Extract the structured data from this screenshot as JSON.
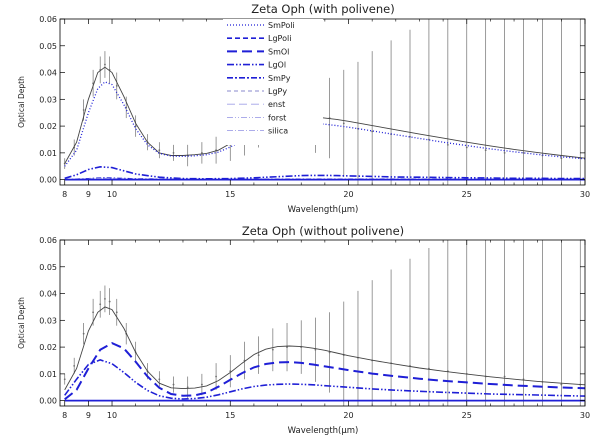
{
  "figure": {
    "colors": {
      "model_total": "#444444",
      "data_points": "#6f6f6f",
      "component": "#1f1fd6"
    }
  },
  "chart_data": [
    {
      "type": "line",
      "title": "Zeta Oph (with polivene)",
      "xlabel": "Wavelength(µm)",
      "ylabel": "Optical Depth",
      "xlim": [
        7.8,
        30
      ],
      "ylim": [
        -0.002,
        0.06
      ],
      "x_ticks": [
        8,
        9,
        10,
        15,
        20,
        25,
        30
      ],
      "y_ticks": [
        "0.00",
        "0.01",
        "0.02",
        "0.03",
        "0.04",
        "0.05",
        "0.06"
      ],
      "legend": {
        "position": "top-center",
        "entries": [
          "SmPoli",
          "LgPoli",
          "SmOl",
          "LgOl",
          "SmPy",
          "LgPy",
          "enst",
          "forst",
          "silica"
        ]
      },
      "series": [
        {
          "style": "solid-dark",
          "x": [
            8.0,
            8.5,
            9.0,
            9.4,
            9.7,
            10.0,
            10.5,
            11.0,
            11.5,
            12.0,
            12.5,
            13.0,
            13.5,
            14.0,
            14.5,
            15.0,
            15.5,
            16.0,
            16.5,
            17.0,
            17.5,
            18.0,
            18.5,
            19.0,
            19.5,
            20.0,
            21.0,
            22.0,
            23.0,
            24.0,
            25.0,
            26.0,
            27.0,
            28.0,
            29.0,
            30.0
          ],
          "y": [
            0.006,
            0.014,
            0.03,
            0.04,
            0.042,
            0.04,
            0.031,
            0.021,
            0.014,
            0.01,
            0.009,
            0.009,
            0.0093,
            0.0098,
            0.011,
            0.0135,
            0.016,
            0.019,
            0.021,
            0.0225,
            0.0232,
            0.0235,
            0.0235,
            0.023,
            0.0225,
            0.0218,
            0.0202,
            0.0186,
            0.017,
            0.0155,
            0.014,
            0.0126,
            0.0113,
            0.0101,
            0.009,
            0.008
          ]
        },
        {
          "name": "SmPoli",
          "style": "dotted",
          "x": [
            8.0,
            8.5,
            9.0,
            9.4,
            9.7,
            10.0,
            10.5,
            11.0,
            11.5,
            12.0,
            12.5,
            13.0,
            13.5,
            14.0,
            14.5,
            15.0,
            15.5,
            16.0,
            16.5,
            17.0,
            17.5,
            18.0,
            18.5,
            19.0,
            19.5,
            20.0,
            21.0,
            22.0,
            23.0,
            24.0,
            25.0,
            26.0,
            27.0,
            28.0,
            29.0,
            30.0
          ],
          "y": [
            0.005,
            0.011,
            0.025,
            0.034,
            0.0365,
            0.0355,
            0.028,
            0.019,
            0.013,
            0.0098,
            0.0088,
            0.0087,
            0.0089,
            0.0093,
            0.0103,
            0.0122,
            0.0145,
            0.017,
            0.0188,
            0.02,
            0.0207,
            0.021,
            0.021,
            0.0207,
            0.0202,
            0.0196,
            0.0182,
            0.0168,
            0.0154,
            0.014,
            0.0127,
            0.0115,
            0.0104,
            0.0094,
            0.0085,
            0.0078
          ]
        },
        {
          "name": "LgOl",
          "style": "dash-dot-dot",
          "x": [
            8.0,
            8.5,
            9.0,
            9.5,
            10.0,
            10.5,
            11.0,
            12.0,
            13.0,
            14.0,
            15.0,
            16.0,
            17.0,
            18.0,
            18.5,
            19.0,
            19.5,
            20.0,
            21.0,
            22.0,
            23.0,
            24.0,
            25.0,
            26.0,
            27.0,
            28.0,
            29.0,
            30.0
          ],
          "y": [
            0.0005,
            0.0018,
            0.0038,
            0.0048,
            0.0045,
            0.0033,
            0.0021,
            0.0009,
            0.0004,
            0.0003,
            0.0004,
            0.0007,
            0.0011,
            0.0015,
            0.0016,
            0.0016,
            0.0015,
            0.0014,
            0.0012,
            0.001,
            0.0009,
            0.0008,
            0.0007,
            0.0006,
            0.0005,
            0.0005,
            0.0004,
            0.0004
          ]
        },
        {
          "name": "SmPy",
          "style": "dash-dot",
          "x": [
            8.0,
            9.0,
            9.5,
            10.0,
            11.0,
            13.0,
            15.0,
            18.0,
            22.0,
            26.0,
            30.0
          ],
          "y": [
            0.0,
            0.0004,
            0.0007,
            0.0006,
            0.0003,
            0.0001,
            0.0001,
            0.0002,
            0.0002,
            0.0001,
            0.0001
          ]
        },
        {
          "name": "LgPy",
          "style": "light-dashed",
          "x": [
            8.0,
            9.0,
            9.5,
            10.0,
            11.0,
            13.0,
            15.0,
            18.0,
            22.0,
            26.0,
            30.0
          ],
          "y": [
            0.0,
            0.0003,
            0.0005,
            0.0004,
            0.0002,
            0.0001,
            0.0,
            0.0001,
            0.0001,
            0.0,
            0.0
          ]
        },
        {
          "name": "SmOl",
          "style": "baseline",
          "x": [
            8.0,
            30.0
          ],
          "y": [
            0.0,
            0.0
          ]
        }
      ],
      "data_with_errors": {
        "x": [
          8.0,
          8.4,
          8.8,
          9.2,
          9.5,
          9.7,
          9.9,
          10.2,
          10.6,
          11.0,
          11.5,
          12.0,
          12.6,
          13.2,
          13.8,
          14.4,
          15.0,
          15.6,
          16.2,
          16.8,
          17.4,
          18.0,
          18.6,
          19.2,
          19.8,
          20.4,
          21.0,
          21.8,
          22.6,
          23.4,
          24.2,
          25.0,
          25.8,
          26.6,
          27.4,
          28.2,
          29.0,
          29.8
        ],
        "y": [
          0.006,
          0.012,
          0.026,
          0.036,
          0.041,
          0.043,
          0.041,
          0.035,
          0.027,
          0.02,
          0.014,
          0.011,
          0.01,
          0.009,
          0.01,
          0.011,
          0.013,
          0.016,
          0.019,
          0.021,
          0.022,
          0.023,
          0.022,
          0.023,
          0.021,
          0.019,
          0.018,
          0.017,
          0.016,
          0.015,
          0.013,
          0.012,
          0.011,
          0.01,
          0.01,
          0.009,
          0.008,
          0.008
        ],
        "err": [
          0.002,
          0.003,
          0.004,
          0.005,
          0.005,
          0.005,
          0.005,
          0.005,
          0.004,
          0.004,
          0.003,
          0.003,
          0.003,
          0.004,
          0.004,
          0.005,
          0.006,
          0.007,
          0.007,
          0.008,
          0.009,
          0.01,
          0.012,
          0.015,
          0.02,
          0.025,
          0.03,
          0.035,
          0.04,
          0.045,
          0.05,
          0.055,
          0.06,
          0.06,
          0.065,
          0.065,
          0.07,
          0.07
        ]
      }
    },
    {
      "type": "line",
      "title": "Zeta Oph (without polivene)",
      "xlabel": "Wavelength(µm)",
      "ylabel": "Optical Depth",
      "xlim": [
        7.8,
        30
      ],
      "ylim": [
        -0.002,
        0.06
      ],
      "x_ticks": [
        8,
        9,
        10,
        15,
        20,
        25,
        30
      ],
      "y_ticks": [
        "0.00",
        "0.01",
        "0.02",
        "0.03",
        "0.04",
        "0.05",
        "0.06"
      ],
      "series": [
        {
          "style": "solid-dark",
          "x": [
            8.0,
            8.5,
            9.0,
            9.4,
            9.7,
            10.0,
            10.5,
            11.0,
            11.5,
            12.0,
            12.5,
            13.0,
            13.5,
            14.0,
            14.5,
            15.0,
            15.5,
            16.0,
            16.5,
            17.0,
            17.5,
            18.0,
            18.5,
            19.0,
            19.5,
            20.0,
            21.0,
            22.0,
            23.0,
            24.0,
            25.0,
            26.0,
            27.0,
            28.0,
            29.0,
            30.0
          ],
          "y": [
            0.004,
            0.012,
            0.026,
            0.033,
            0.035,
            0.034,
            0.027,
            0.018,
            0.011,
            0.0065,
            0.0048,
            0.0045,
            0.0047,
            0.0055,
            0.0075,
            0.0105,
            0.014,
            0.0172,
            0.0192,
            0.0202,
            0.0204,
            0.0202,
            0.0196,
            0.0188,
            0.0178,
            0.0168,
            0.0151,
            0.0136,
            0.0122,
            0.011,
            0.0099,
            0.0089,
            0.008,
            0.0072,
            0.0065,
            0.0059
          ]
        },
        {
          "name": "SmOl",
          "style": "long-dash",
          "x": [
            8.0,
            8.5,
            9.0,
            9.5,
            10.0,
            10.5,
            11.0,
            11.5,
            12.0,
            12.5,
            13.0,
            13.5,
            14.0,
            14.5,
            15.0,
            15.5,
            16.0,
            16.5,
            17.0,
            17.5,
            18.0,
            18.5,
            19.0,
            19.5,
            20.0,
            21.0,
            22.0,
            23.0,
            24.0,
            25.0,
            26.0,
            27.0,
            28.0,
            29.0,
            30.0
          ],
          "y": [
            0.0005,
            0.004,
            0.012,
            0.019,
            0.0215,
            0.0195,
            0.0145,
            0.009,
            0.0048,
            0.0025,
            0.0018,
            0.002,
            0.003,
            0.0052,
            0.0078,
            0.0103,
            0.0124,
            0.0137,
            0.0143,
            0.0144,
            0.0141,
            0.0135,
            0.0128,
            0.0121,
            0.0114,
            0.0101,
            0.0091,
            0.0082,
            0.0074,
            0.0068,
            0.0062,
            0.0057,
            0.0053,
            0.0049,
            0.0046
          ]
        },
        {
          "name": "LgOl",
          "style": "dash-dot-dot",
          "x": [
            8.0,
            8.5,
            9.0,
            9.5,
            10.0,
            10.5,
            11.0,
            11.5,
            12.0,
            12.5,
            13.0,
            13.5,
            14.0,
            14.5,
            15.0,
            15.5,
            16.0,
            16.5,
            17.0,
            17.5,
            18.0,
            18.5,
            19.0,
            19.5,
            20.0,
            21.0,
            22.0,
            23.0,
            24.0,
            25.0,
            26.0,
            27.0,
            28.0,
            29.0,
            30.0
          ],
          "y": [
            0.002,
            0.008,
            0.0135,
            0.0152,
            0.0138,
            0.0105,
            0.0068,
            0.0038,
            0.0018,
            0.0009,
            0.0006,
            0.0008,
            0.0013,
            0.0022,
            0.0033,
            0.0044,
            0.0053,
            0.0058,
            0.0061,
            0.0062,
            0.0061,
            0.0059,
            0.0056,
            0.0053,
            0.005,
            0.0044,
            0.0039,
            0.0035,
            0.0031,
            0.0028,
            0.0025,
            0.0023,
            0.0021,
            0.0019,
            0.0017
          ]
        },
        {
          "name": "SmPy",
          "style": "baseline",
          "x": [
            8.0,
            30.0
          ],
          "y": [
            0.0,
            0.0
          ]
        }
      ],
      "data_with_errors": {
        "x": [
          8.0,
          8.4,
          8.8,
          9.2,
          9.5,
          9.7,
          9.9,
          10.2,
          10.6,
          11.0,
          11.5,
          12.0,
          12.6,
          13.2,
          13.8,
          14.4,
          15.0,
          15.6,
          16.2,
          16.8,
          17.4,
          18.0,
          18.6,
          19.2,
          19.8,
          20.4,
          21.0,
          21.8,
          22.6,
          23.4,
          24.2,
          25.0,
          25.8,
          26.6,
          27.4,
          28.2,
          29.0,
          29.8
        ],
        "y": [
          0.008,
          0.013,
          0.025,
          0.033,
          0.036,
          0.038,
          0.037,
          0.033,
          0.025,
          0.018,
          0.011,
          0.008,
          0.006,
          0.005,
          0.006,
          0.009,
          0.011,
          0.015,
          0.017,
          0.019,
          0.02,
          0.02,
          0.019,
          0.018,
          0.017,
          0.016,
          0.015,
          0.014,
          0.013,
          0.012,
          0.011,
          0.01,
          0.009,
          0.009,
          0.008,
          0.007,
          0.006,
          0.006
        ],
        "err": [
          0.002,
          0.003,
          0.004,
          0.005,
          0.005,
          0.005,
          0.005,
          0.005,
          0.004,
          0.004,
          0.003,
          0.003,
          0.003,
          0.004,
          0.004,
          0.005,
          0.006,
          0.007,
          0.007,
          0.008,
          0.009,
          0.01,
          0.012,
          0.015,
          0.02,
          0.025,
          0.03,
          0.035,
          0.04,
          0.045,
          0.05,
          0.055,
          0.06,
          0.06,
          0.065,
          0.065,
          0.07,
          0.07
        ]
      }
    }
  ]
}
